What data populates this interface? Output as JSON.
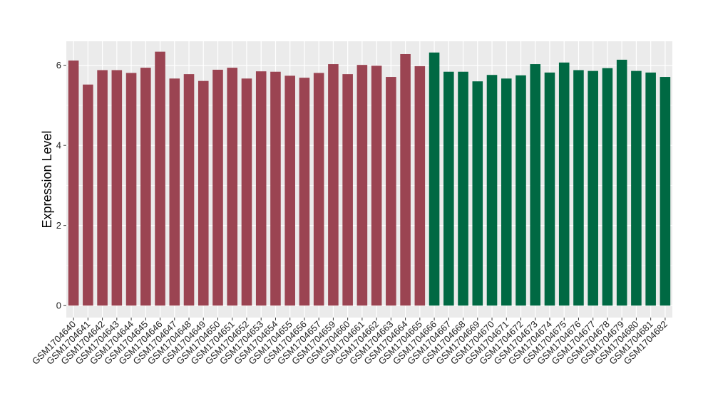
{
  "chart_data": {
    "type": "bar",
    "ylabel": "Expression Level",
    "xlabel": "",
    "ylim": [
      -0.3,
      6.6
    ],
    "yticks": [
      0,
      2,
      4,
      6
    ],
    "grid": true,
    "background_color": "#ebebeb",
    "grid_color": "#ffffff",
    "group_colors": {
      "group1": "#9b4452",
      "group2": "#006943"
    },
    "categories": [
      "GSM1704640",
      "GSM1704641",
      "GSM1704642",
      "GSM1704643",
      "GSM1704644",
      "GSM1704645",
      "GSM1704646",
      "GSM1704647",
      "GSM1704648",
      "GSM1704649",
      "GSM1704650",
      "GSM1704651",
      "GSM1704652",
      "GSM1704653",
      "GSM1704654",
      "GSM1704655",
      "GSM1704656",
      "GSM1704657",
      "GSM1704659",
      "GSM1704660",
      "GSM1704661",
      "GSM1704662",
      "GSM1704663",
      "GSM1704664",
      "GSM1704665",
      "GSM1704666",
      "GSM1704667",
      "GSM1704668",
      "GSM1704669",
      "GSM1704670",
      "GSM1704671",
      "GSM1704672",
      "GSM1704673",
      "GSM1704674",
      "GSM1704675",
      "GSM1704676",
      "GSM1704677",
      "GSM1704678",
      "GSM1704679",
      "GSM1704680",
      "GSM1704681",
      "GSM1704682"
    ],
    "values": [
      6.12,
      5.52,
      5.88,
      5.88,
      5.81,
      5.94,
      6.34,
      5.67,
      5.78,
      5.61,
      5.89,
      5.94,
      5.67,
      5.85,
      5.84,
      5.74,
      5.69,
      5.81,
      6.03,
      5.78,
      6.01,
      5.99,
      5.71,
      6.28,
      5.98,
      6.32,
      5.84,
      5.84,
      5.6,
      5.76,
      5.67,
      5.75,
      6.03,
      5.82,
      6.07,
      5.88,
      5.86,
      5.93,
      6.14,
      5.86,
      5.82,
      5.71
    ],
    "groups": [
      "group1",
      "group1",
      "group1",
      "group1",
      "group1",
      "group1",
      "group1",
      "group1",
      "group1",
      "group1",
      "group1",
      "group1",
      "group1",
      "group1",
      "group1",
      "group1",
      "group1",
      "group1",
      "group1",
      "group1",
      "group1",
      "group1",
      "group1",
      "group1",
      "group1",
      "group2",
      "group2",
      "group2",
      "group2",
      "group2",
      "group2",
      "group2",
      "group2",
      "group2",
      "group2",
      "group2",
      "group2",
      "group2",
      "group2",
      "group2",
      "group2",
      "group2"
    ]
  }
}
